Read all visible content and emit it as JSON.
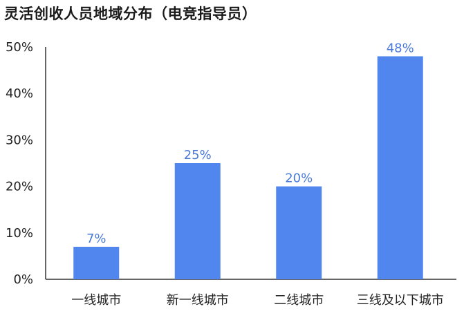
{
  "chart_data": {
    "type": "bar",
    "title": "灵活创收人员地域分布（电竞指导员）",
    "xlabel": "",
    "ylabel": "",
    "categories": [
      "一线城市",
      "新一线城市",
      "二线城市",
      "三线及以下城市"
    ],
    "values": [
      7,
      25,
      20,
      48
    ],
    "value_labels": [
      "7%",
      "25%",
      "20%",
      "48%"
    ],
    "ylim": [
      0,
      50
    ],
    "yticks": [
      "0%",
      "10%",
      "20%",
      "30%",
      "40%",
      "50%"
    ],
    "grid": false,
    "legend": "none",
    "colors": {
      "bar": "#5286ef",
      "label": "#4a7ad8",
      "axis": "#333333"
    }
  }
}
